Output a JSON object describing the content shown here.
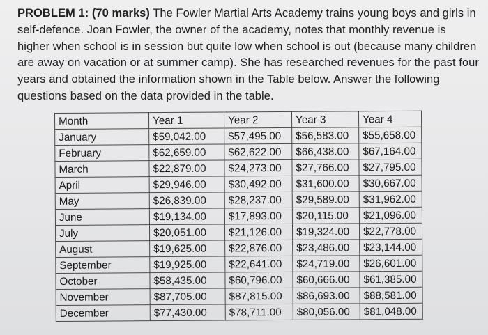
{
  "problem": {
    "heading": "PROBLEM 1: (70 marks)",
    "text": " The Fowler Martial Arts Academy trains young boys and girls in self-defence. Joan Fowler, the owner of the academy, notes that monthly revenue is higher when school is in session but quite low when school is out (because many children are away on vacation or at summer camp). She has researched revenues for the past four years and obtained the information shown in the Table below. Answer the following questions based on the data provided in the table."
  },
  "table": {
    "headers": [
      "Month",
      "Year 1",
      "Year 2",
      "Year 3",
      "Year 4"
    ],
    "rows": [
      [
        "January",
        "$59,042.00",
        "$57,495.00",
        "$56,583.00",
        "$55,658.00"
      ],
      [
        "February",
        "$62,659.00",
        "$62,622.00",
        "$66,438.00",
        "$67,164.00"
      ],
      [
        "March",
        "$22,879.00",
        "$24,273.00",
        "$27,766.00",
        "$27,795.00"
      ],
      [
        "April",
        "$29,946.00",
        "$30,492.00",
        "$31,600.00",
        "$30,667.00"
      ],
      [
        "May",
        "$26,839.00",
        "$28,237.00",
        "$29,589.00",
        "$31,962.00"
      ],
      [
        "June",
        "$19,134.00",
        "$17,893.00",
        "$20,115.00",
        "$21,096.00"
      ],
      [
        "July",
        "$20,051.00",
        "$21,126.00",
        "$19,324.00",
        "$22,778.00"
      ],
      [
        "August",
        "$19,625.00",
        "$22,876.00",
        "$23,486.00",
        "$23,144.00"
      ],
      [
        "September",
        "$19,925.00",
        "$22,641.00",
        "$24,719.00",
        "$26,601.00"
      ],
      [
        "October",
        "$58,435.00",
        "$60,796.00",
        "$60,666.00",
        "$61,385.00"
      ],
      [
        "November",
        "$87,705.00",
        "$87,815.00",
        "$86,693.00",
        "$88,581.00"
      ],
      [
        "December",
        "$77,430.00",
        "$78,711.00",
        "$80,056.00",
        "$81,048.00"
      ]
    ]
  }
}
